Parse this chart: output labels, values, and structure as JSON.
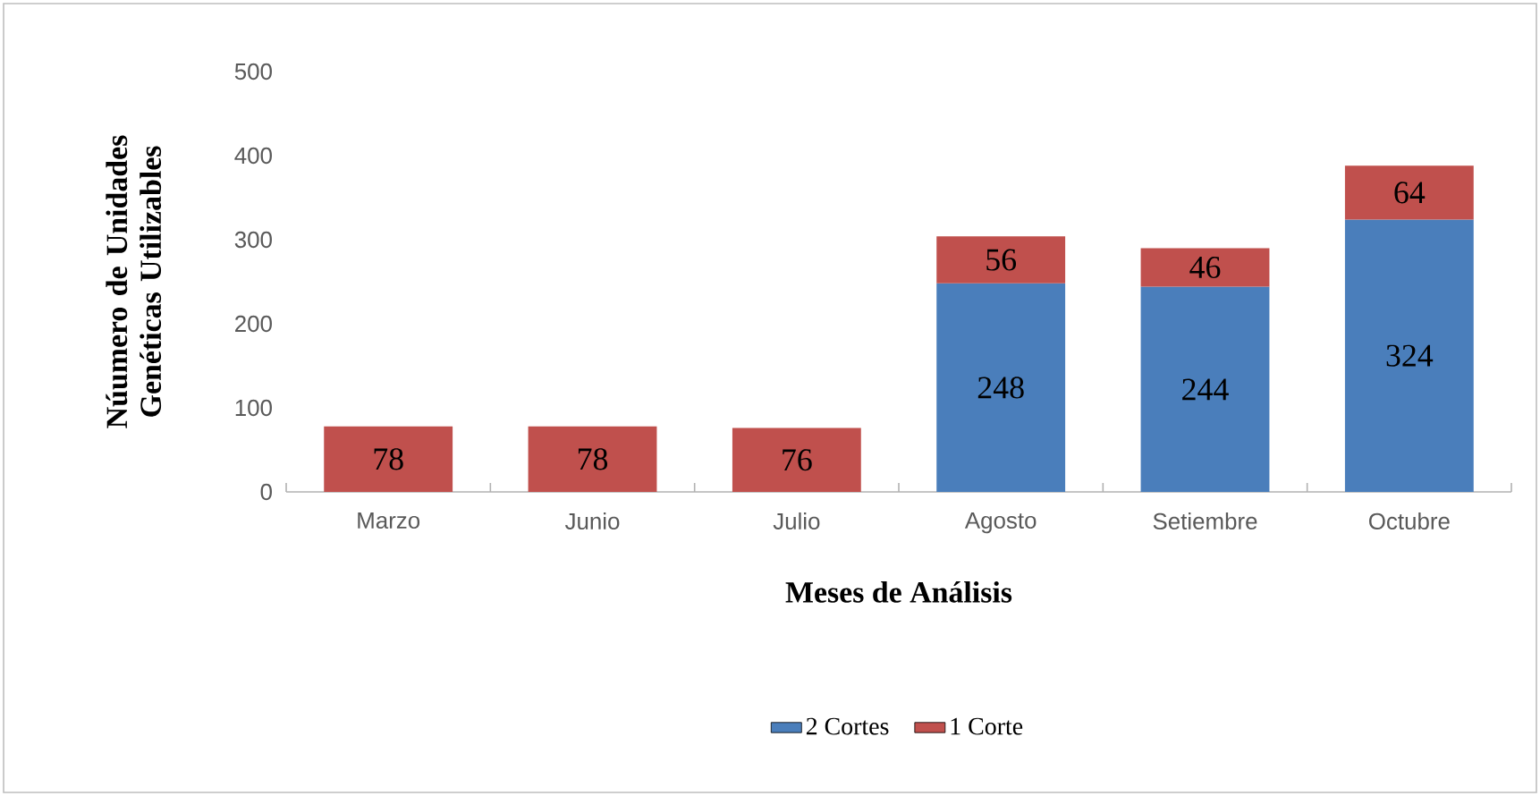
{
  "chart_data": {
    "type": "bar",
    "stacked": true,
    "xlabel": "Meses de Análisis",
    "ylabel": "Núumero de Unidades Genéticas Utilizables",
    "categories": [
      "Marzo",
      "Junio",
      "Julio",
      "Agosto",
      "Setiembre",
      "Octubre"
    ],
    "series": [
      {
        "name": "2 Cortes",
        "color": "#4a7ebb",
        "values": [
          null,
          null,
          null,
          248,
          244,
          324
        ]
      },
      {
        "name": "1 Corte",
        "color": "#c0504d",
        "values": [
          78,
          78,
          76,
          56,
          46,
          64
        ]
      }
    ],
    "ylim": [
      0,
      500
    ],
    "yticks": [
      0,
      100,
      200,
      300,
      400,
      500
    ],
    "data_labels": true,
    "legend": "bottom",
    "grid": false
  }
}
